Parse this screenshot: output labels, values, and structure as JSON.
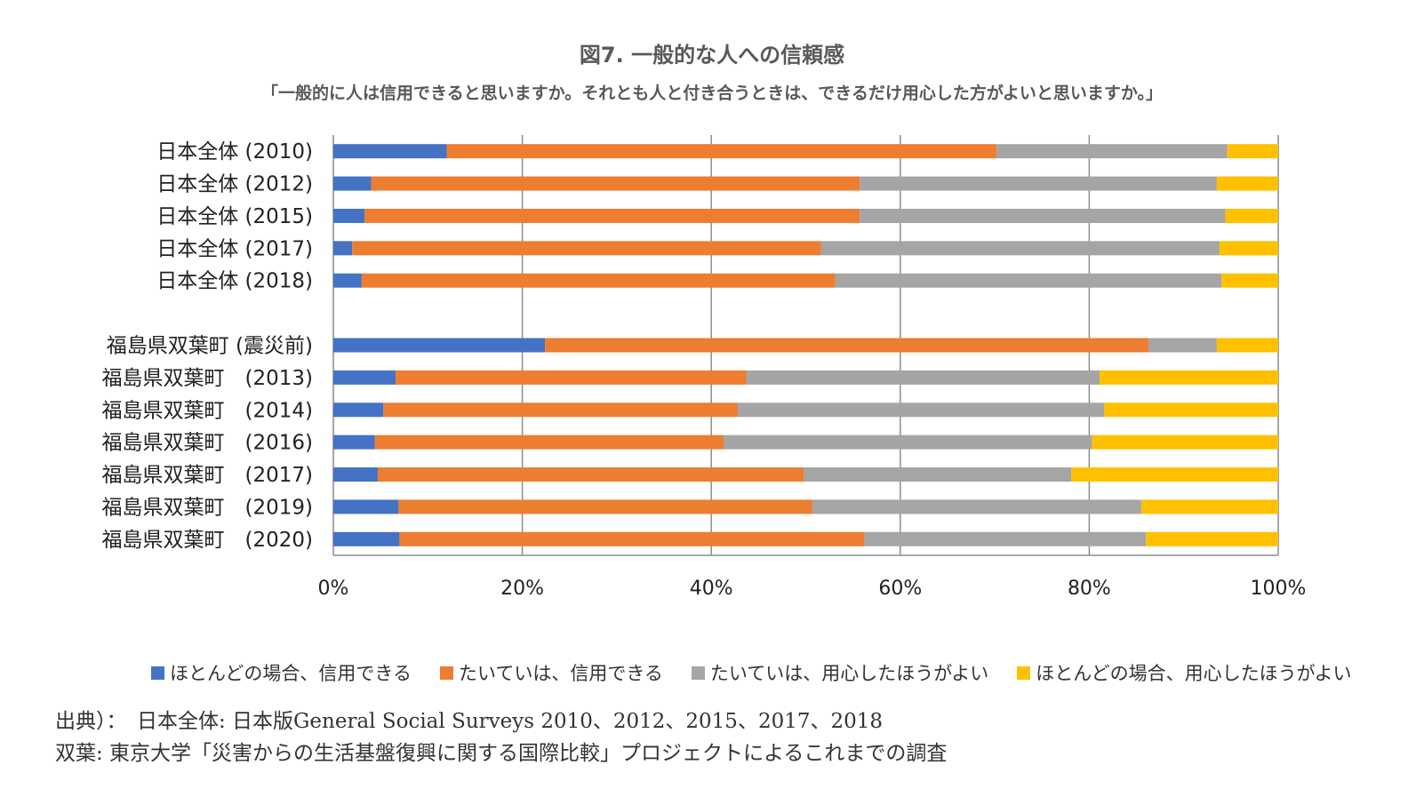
{
  "chart_data": {
    "type": "bar",
    "orientation": "horizontal",
    "stacked": "percent",
    "title": "図7. 一般的な人への信頼感",
    "subtitle": "「一般的に人は信用できると思いますか。それとも人と付き合うときは、できるだけ用心した方がよいと思いますか。」",
    "categories": [
      "日本全体 (2010)",
      "日本全体 (2012)",
      "日本全体 (2015)",
      "日本全体 (2017)",
      "日本全体 (2018)",
      "",
      "福島県双葉町 (震災前)",
      "福島県双葉町　(2013)",
      "福島県双葉町　(2014)",
      "福島県双葉町　(2016)",
      "福島県双葉町　(2017)",
      "福島県双葉町　(2019)",
      "福島県双葉町　(2020)"
    ],
    "series": [
      {
        "name": "ほとんどの場合、信用できる",
        "color": "#4472C4",
        "values": [
          12,
          4,
          3.3,
          2,
          3,
          null,
          22.4,
          6.6,
          5.3,
          4.4,
          4.7,
          6.9,
          7
        ]
      },
      {
        "name": "たいていは、信用できる",
        "color": "#ED7D31",
        "values": [
          58.2,
          51.7,
          52.4,
          49.6,
          50.1,
          null,
          63.9,
          37.1,
          37.5,
          36.9,
          45.1,
          43.8,
          49.2
        ]
      },
      {
        "name": "たいていは、用心したほうがよい",
        "color": "#A5A5A5",
        "values": [
          24.4,
          37.8,
          38.7,
          42.2,
          40.9,
          null,
          7.2,
          37.4,
          38.8,
          39,
          28.3,
          34.8,
          29.8
        ]
      },
      {
        "name": "ほとんどの場合、用心したほうがよい",
        "color": "#FFC000",
        "values": [
          5.4,
          6.5,
          5.6,
          6.2,
          6,
          null,
          6.5,
          18.9,
          18.4,
          19.7,
          21.9,
          14.5,
          14
        ]
      }
    ],
    "x_ticks": [
      "0%",
      "20%",
      "40%",
      "60%",
      "80%",
      "100%"
    ],
    "xlim": [
      0,
      100
    ],
    "grid": true,
    "legend": "bottom"
  },
  "source": {
    "line1": "出典）：　日本全体: 日本版General Social Surveys 2010、2012、2015、2017、2018",
    "line2": "双葉: 東京大学「災害からの生活基盤復興に関する国際比較」プロジェクトによるこれまでの調査"
  }
}
